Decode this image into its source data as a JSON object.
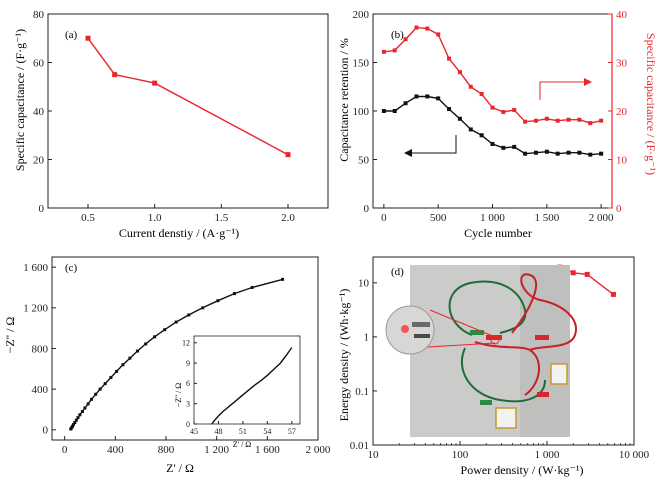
{
  "colors": {
    "red": "#e8262b",
    "black": "#111111",
    "axis": "#222222"
  },
  "chart_data": [
    {
      "id": "a",
      "panel_label": "(a)",
      "type": "line",
      "xlabel": "Current denstiy / (A·g⁻¹)",
      "ylabel": "Specific capacitance / (F·g⁻¹)",
      "xlim": [
        0.2,
        2.3
      ],
      "ylim": [
        0,
        80
      ],
      "xticks": [
        0.5,
        1.0,
        1.5,
        2.0
      ],
      "xtick_labels": [
        "0.5",
        "1.0",
        "1.5",
        "2.0"
      ],
      "yticks": [
        0,
        20,
        40,
        60,
        80
      ],
      "ytick_labels": [
        "0",
        "20",
        "40",
        "60",
        "80"
      ],
      "x": [
        0.5,
        0.7,
        1.0,
        2.0
      ],
      "y": [
        70,
        55,
        51.5,
        22
      ],
      "color": "#e8262b",
      "marker": "square"
    },
    {
      "id": "b",
      "panel_label": "(b)",
      "type": "line",
      "xlabel": "Cycle number",
      "ylabel": "Capacitance retention / %",
      "y2label": "Specific capacitance / (F·g⁻¹)",
      "xlim": [
        -100,
        2100
      ],
      "ylim": [
        0,
        200
      ],
      "y2lim": [
        0,
        40
      ],
      "xticks": [
        0,
        500,
        1000,
        1500,
        2000
      ],
      "xtick_labels": [
        "0",
        "500",
        "1 000",
        "1 500",
        "2 000"
      ],
      "yticks": [
        0,
        50,
        100,
        150,
        200
      ],
      "ytick_labels": [
        "0",
        "50",
        "100",
        "150",
        "200"
      ],
      "y2ticks": [
        0,
        10,
        20,
        30,
        40
      ],
      "y2tick_labels": [
        "0",
        "10",
        "20",
        "30",
        "40"
      ],
      "series": [
        {
          "axis": "left",
          "color": "#111111",
          "x": [
            0,
            100,
            200,
            300,
            400,
            500,
            600,
            700,
            800,
            900,
            1000,
            1100,
            1200,
            1300,
            1400,
            1500,
            1600,
            1700,
            1800,
            1900,
            2000
          ],
          "y": [
            100,
            100,
            108,
            115,
            115,
            113,
            102,
            92,
            81,
            75,
            66,
            62,
            63,
            56,
            57,
            58,
            56,
            57,
            57,
            55,
            56
          ]
        },
        {
          "axis": "right",
          "color": "#e8262b",
          "x": [
            0,
            100,
            200,
            300,
            400,
            500,
            600,
            700,
            800,
            900,
            1000,
            1100,
            1200,
            1300,
            1400,
            1500,
            1600,
            1700,
            1800,
            1900,
            2000
          ],
          "y": [
            32.2,
            32.5,
            34.8,
            37.2,
            37.0,
            35.8,
            30.8,
            28.0,
            25.0,
            23.5,
            20.7,
            19.8,
            20.2,
            17.8,
            18.0,
            18.4,
            18.0,
            18.2,
            18.2,
            17.5,
            18.0
          ]
        }
      ]
    },
    {
      "id": "c",
      "panel_label": "(c)",
      "type": "line",
      "xlabel": "Z' / Ω",
      "ylabel": "−Z'' / Ω",
      "xlim": [
        -100,
        2000
      ],
      "ylim": [
        -100,
        1700
      ],
      "xticks": [
        0,
        400,
        800,
        1200,
        1600,
        2000
      ],
      "xtick_labels": [
        "0",
        "400",
        "800",
        "1 200",
        "1 600",
        "2 000"
      ],
      "yticks": [
        0,
        400,
        800,
        1200,
        1600
      ],
      "ytick_labels": [
        "0",
        "400",
        "800",
        "1 200",
        "1 600"
      ],
      "x": [
        48,
        55,
        62,
        70,
        80,
        92,
        105,
        120,
        140,
        160,
        185,
        212,
        245,
        280,
        320,
        365,
        410,
        460,
        515,
        575,
        640,
        710,
        790,
        880,
        980,
        1090,
        1210,
        1340,
        1480,
        1720
      ],
      "y": [
        8,
        20,
        35,
        52,
        72,
        95,
        120,
        148,
        180,
        215,
        255,
        300,
        350,
        400,
        455,
        515,
        575,
        640,
        705,
        775,
        845,
        915,
        985,
        1060,
        1130,
        1200,
        1270,
        1340,
        1400,
        1480
      ],
      "color": "#111111",
      "marker": "square",
      "inset": {
        "xlabel": "Z' / Ω",
        "ylabel": "−Z'' / Ω",
        "xlim": [
          45,
          58
        ],
        "ylim": [
          0,
          13
        ],
        "xticks": [
          45,
          48,
          51,
          54,
          57
        ],
        "xtick_labels": [
          "45",
          "48",
          "51",
          "54",
          "57"
        ],
        "yticks": [
          0,
          3,
          6,
          9,
          12
        ],
        "ytick_labels": [
          "0",
          "3",
          "6",
          "9",
          "12"
        ],
        "x": [
          47.2,
          47.5,
          48.0,
          48.6,
          49.3,
          50.0,
          50.8,
          51.6,
          52.4,
          53.2,
          54.0,
          54.8,
          55.6,
          56.3,
          57.0
        ],
        "y": [
          0,
          0.5,
          1.2,
          1.9,
          2.6,
          3.3,
          4.1,
          4.9,
          5.7,
          6.4,
          7.2,
          8.1,
          9.0,
          10.1,
          11.3
        ]
      }
    },
    {
      "id": "d",
      "panel_label": "(d)",
      "type": "line",
      "xlabel": "Power density / (W·kg⁻¹)",
      "ylabel": "Energy density / (Wh·kg⁻¹)",
      "xscale": "log",
      "yscale": "log",
      "xlim": [
        10,
        10000
      ],
      "ylim": [
        0.01,
        30
      ],
      "xticks": [
        10,
        100,
        1000,
        10000
      ],
      "xtick_labels": [
        "10",
        "100",
        "1 000",
        "10 000"
      ],
      "yticks": [
        0.01,
        0.1,
        1,
        10
      ],
      "ytick_labels": [
        "0.01",
        "0.1",
        "1",
        "10"
      ],
      "x": [
        1400,
        2000,
        2900,
        5800
      ],
      "y": [
        19.5,
        15.3,
        14.3,
        6.1
      ],
      "color": "#e8262b",
      "marker": "square"
    }
  ]
}
